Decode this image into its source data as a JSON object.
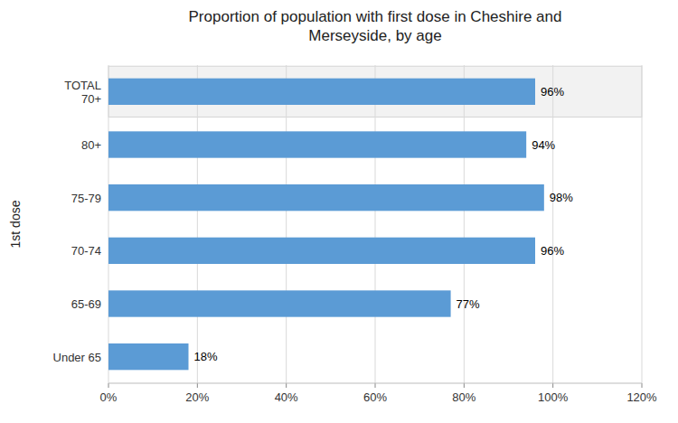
{
  "chart_data": {
    "type": "bar",
    "orientation": "horizontal",
    "title": "Proportion of population with first dose in Cheshire and\nMerseyside, by age",
    "categories": [
      "Under 65",
      "65-69",
      "70-74",
      "75-79",
      "80+",
      "TOTAL\n70+"
    ],
    "values": [
      0.18,
      0.77,
      0.96,
      0.98,
      0.94,
      0.96
    ],
    "value_labels": [
      "18%",
      "77%",
      "96%",
      "98%",
      "94%",
      "96%"
    ],
    "data_labels": true,
    "color": "#5B9BD5",
    "ylabel": "1st dose",
    "xlim": [
      0,
      1.2
    ],
    "xticks": [
      {
        "value": 0.0,
        "label": "0%"
      },
      {
        "value": 0.2,
        "label": "20%"
      },
      {
        "value": 0.4,
        "label": "40%"
      },
      {
        "value": 0.6,
        "label": "60%"
      },
      {
        "value": 0.8,
        "label": "80%"
      },
      {
        "value": 1.0,
        "label": "100%"
      },
      {
        "value": 1.2,
        "label": "120%"
      }
    ],
    "grid": true
  }
}
